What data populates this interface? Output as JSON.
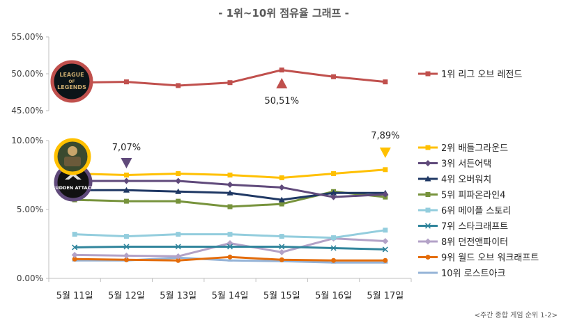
{
  "chart_data": {
    "type": "line",
    "title": "- 1위~10위 점유율 그래프 -",
    "source_note": "<주간 종합 게임 순위 1-2>",
    "categories": [
      "5월 11일",
      "5월 12일",
      "5월 13일",
      "5월 14일",
      "5월 15일",
      "5월 16일",
      "5월 17일"
    ],
    "top_panel": {
      "yticks": [
        "55.00%",
        "50.00%",
        "45.00%"
      ],
      "ylim": [
        45,
        55
      ],
      "series": [
        {
          "name": "1위 리그 오브 레전드",
          "color": "#c0504d",
          "marker": "square",
          "values": [
            48.8,
            48.9,
            48.4,
            48.8,
            50.51,
            49.6,
            48.9
          ]
        }
      ],
      "logo_text": [
        "LEAGUE",
        "OF",
        "LEGENDS"
      ],
      "annotation": {
        "label": "50,51%",
        "category_index": 4,
        "color": "#c0504d"
      }
    },
    "bottom_panel": {
      "yticks": [
        "10.00%",
        "5.00%",
        "0.00%"
      ],
      "ylim": [
        0,
        10
      ],
      "series": [
        {
          "name": "2위 배틀그라운드",
          "color": "#ffc000",
          "marker": "square",
          "values": [
            7.6,
            7.5,
            7.6,
            7.5,
            7.3,
            7.6,
            7.89
          ]
        },
        {
          "name": "3위 서든어택",
          "color": "#604a7b",
          "marker": "diamond",
          "values": [
            7.07,
            7.07,
            7.07,
            6.8,
            6.6,
            5.9,
            6.1
          ]
        },
        {
          "name": "4위 오버워치",
          "color": "#1f3864",
          "marker": "triangle",
          "values": [
            6.4,
            6.4,
            6.3,
            6.2,
            5.7,
            6.2,
            6.2
          ]
        },
        {
          "name": "5위 피파온라인4",
          "color": "#77933c",
          "marker": "square",
          "values": [
            5.7,
            5.6,
            5.6,
            5.2,
            5.4,
            6.3,
            5.9
          ]
        },
        {
          "name": "6위 메이플 스토리",
          "color": "#93cddd",
          "marker": "square",
          "values": [
            3.2,
            3.05,
            3.2,
            3.2,
            3.05,
            2.95,
            3.5
          ]
        },
        {
          "name": "7위 스타크래프트",
          "color": "#31859c",
          "marker": "x",
          "values": [
            2.25,
            2.3,
            2.3,
            2.3,
            2.3,
            2.2,
            2.1
          ]
        },
        {
          "name": "8위 던전앤파이터",
          "color": "#b3a2c7",
          "marker": "diamond",
          "values": [
            1.7,
            1.65,
            1.6,
            2.55,
            1.9,
            2.9,
            2.7
          ]
        },
        {
          "name": "9위 월드 오브 워크래프트",
          "color": "#e46c0a",
          "marker": "circle",
          "values": [
            1.4,
            1.35,
            1.3,
            1.55,
            1.35,
            1.3,
            1.3
          ]
        },
        {
          "name": "10위 로스트아크",
          "color": "#95b3d7",
          "marker": "line",
          "values": [
            1.3,
            1.3,
            1.5,
            1.3,
            1.25,
            1.15,
            1.15
          ]
        }
      ],
      "logo_text": [
        "SUDDEN ATTACK"
      ],
      "annotations": [
        {
          "label": "7,07%",
          "category_index": 1,
          "color": "#604a7b"
        },
        {
          "label": "7,89%",
          "category_index": 6,
          "color": "#ffc000"
        }
      ]
    },
    "grid": false,
    "legend_position": "right"
  }
}
